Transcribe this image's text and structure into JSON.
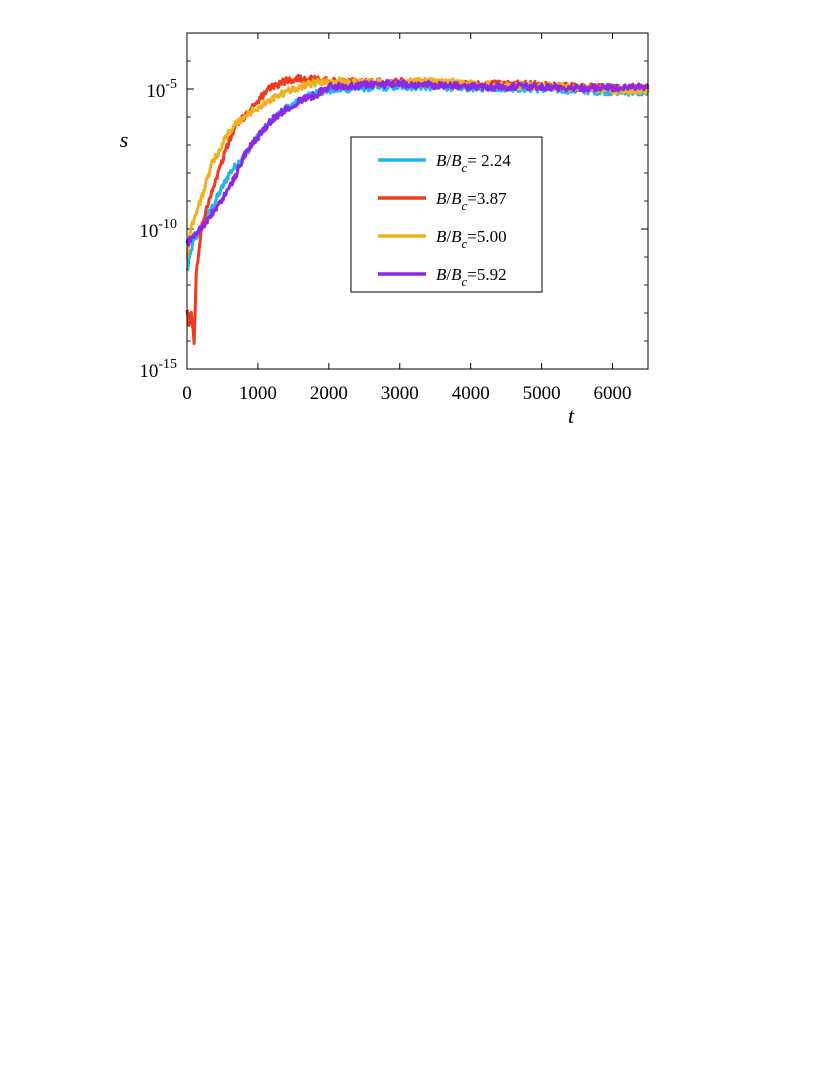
{
  "chart_data": {
    "type": "line",
    "xlabel": "t",
    "ylabel": "s",
    "xlim": [
      0,
      6500
    ],
    "ylim": [
      1e-15,
      0.001
    ],
    "yscale": "log",
    "grid": false,
    "legend_position": "center-right",
    "x_ticks": [
      "0",
      "1000",
      "2000",
      "3000",
      "4000",
      "5000",
      "6000"
    ],
    "y_ticks": [
      {
        "base": "10",
        "exp": "-15",
        "value": 1e-15
      },
      {
        "base": "10",
        "exp": "-10",
        "value": 1e-10
      },
      {
        "base": "10",
        "exp": "-5",
        "value": 1e-05
      }
    ],
    "series": [
      {
        "name_parts": {
          "b": "B",
          "slash": "/",
          "bc": "B",
          "sub": "c",
          "rest": "= 2.24"
        },
        "color": "#22b5f0",
        "points": [
          [
            0,
            3e-12
          ],
          [
            80,
            3e-11
          ],
          [
            200,
            1e-10
          ],
          [
            400,
            1e-09
          ],
          [
            600,
            1e-08
          ],
          [
            800,
            4e-08
          ],
          [
            1000,
            2e-07
          ],
          [
            1200,
            8e-07
          ],
          [
            1400,
            2e-06
          ],
          [
            1600,
            4e-06
          ],
          [
            1800,
            7e-06
          ],
          [
            2000,
            9e-06
          ],
          [
            2500,
            1.1e-05
          ],
          [
            3000,
            1.2e-05
          ],
          [
            3500,
            1.2e-05
          ],
          [
            4000,
            1.1e-05
          ],
          [
            4500,
            1.1e-05
          ],
          [
            5000,
            1e-05
          ],
          [
            5500,
            9e-06
          ],
          [
            6000,
            8e-06
          ],
          [
            6500,
            7.5e-06
          ]
        ]
      },
      {
        "name_parts": {
          "b": "B",
          "slash": "/",
          "bc": "B",
          "sub": "c",
          "rest": "=3.87"
        },
        "color": "#f03a1e",
        "points": [
          [
            0,
            1e-13
          ],
          [
            30,
            4e-14
          ],
          [
            60,
            1e-13
          ],
          [
            100,
            1e-14
          ],
          [
            130,
            2e-12
          ],
          [
            200,
            1e-10
          ],
          [
            300,
            1e-09
          ],
          [
            400,
            5e-09
          ],
          [
            500,
            3e-08
          ],
          [
            600,
            1.5e-07
          ],
          [
            700,
            5e-07
          ],
          [
            800,
            1e-06
          ],
          [
            900,
            2e-06
          ],
          [
            1000,
            4e-06
          ],
          [
            1100,
            7e-06
          ],
          [
            1200,
            1.2e-05
          ],
          [
            1400,
            2e-05
          ],
          [
            1600,
            2.4e-05
          ],
          [
            1800,
            2.2e-05
          ],
          [
            2000,
            1.9e-05
          ],
          [
            2500,
            1.8e-05
          ],
          [
            3000,
            1.8e-05
          ],
          [
            3500,
            1.6e-05
          ],
          [
            4000,
            1.4e-05
          ],
          [
            4500,
            1.5e-05
          ],
          [
            5000,
            1.4e-05
          ],
          [
            5500,
            1.2e-05
          ],
          [
            6000,
            1.1e-05
          ],
          [
            6500,
            1e-05
          ]
        ]
      },
      {
        "name_parts": {
          "b": "B",
          "slash": "/",
          "bc": "B",
          "sub": "c",
          "rest": "=5.00"
        },
        "color": "#f0b020",
        "points": [
          [
            0,
            1e-11
          ],
          [
            50,
            1e-10
          ],
          [
            150,
            5e-10
          ],
          [
            250,
            3e-09
          ],
          [
            350,
            2e-08
          ],
          [
            450,
            6e-08
          ],
          [
            550,
            2e-07
          ],
          [
            700,
            6e-07
          ],
          [
            900,
            1.5e-06
          ],
          [
            1100,
            3e-06
          ],
          [
            1300,
            6e-06
          ],
          [
            1500,
            1e-05
          ],
          [
            1700,
            1.5e-05
          ],
          [
            1900,
            1.8e-05
          ],
          [
            2100,
            1.9e-05
          ],
          [
            2500,
            1.7e-05
          ],
          [
            3000,
            1.7e-05
          ],
          [
            3500,
            2e-05
          ],
          [
            4000,
            1.5e-05
          ],
          [
            4500,
            1.3e-05
          ],
          [
            5000,
            1.3e-05
          ],
          [
            5500,
            1.1e-05
          ],
          [
            6000,
            9e-06
          ],
          [
            6500,
            8.5e-06
          ]
        ]
      },
      {
        "name_parts": {
          "b": "B",
          "slash": "/",
          "bc": "B",
          "sub": "c",
          "rest": "=5.92"
        },
        "color": "#8c28e8",
        "points": [
          [
            0,
            3e-11
          ],
          [
            100,
            6e-11
          ],
          [
            250,
            1.5e-10
          ],
          [
            400,
            5e-10
          ],
          [
            500,
            1.2e-09
          ],
          [
            600,
            3e-09
          ],
          [
            700,
            1e-08
          ],
          [
            800,
            4e-08
          ],
          [
            1000,
            2e-07
          ],
          [
            1200,
            8e-07
          ],
          [
            1400,
            2e-06
          ],
          [
            1600,
            4e-06
          ],
          [
            1800,
            6e-06
          ],
          [
            2000,
            1.2e-05
          ],
          [
            2500,
            1.4e-05
          ],
          [
            3000,
            1.5e-05
          ],
          [
            3500,
            1.4e-05
          ],
          [
            4000,
            1.2e-05
          ],
          [
            4500,
            1.2e-05
          ],
          [
            5000,
            1.2e-05
          ],
          [
            5500,
            1.1e-05
          ],
          [
            6000,
            1.1e-05
          ],
          [
            6500,
            1.2e-05
          ]
        ]
      }
    ]
  }
}
